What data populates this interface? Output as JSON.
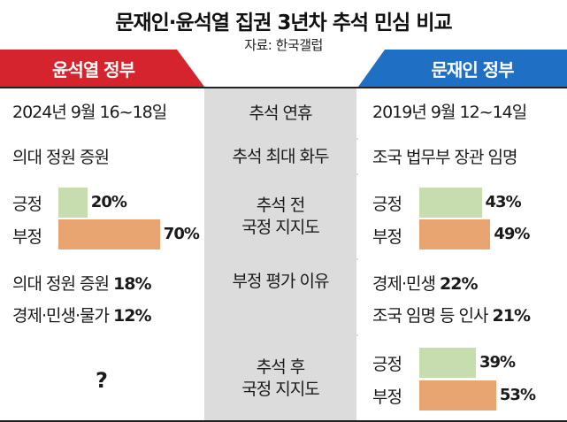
{
  "title": "문재인·윤석열 집권 3년차 추석 민심 비교",
  "source": "자료: 한국갤럽",
  "headers": {
    "left": "윤석열 정부",
    "right": "문재인 정부"
  },
  "rows": {
    "holiday": {
      "mid": "추석 연휴",
      "left": "2024년 9월 16~18일",
      "right": "2019년 9월 12~14일"
    },
    "topic": {
      "mid": "추석 최대 화두",
      "left": "의대 정원 증원",
      "right": "조국 법무부 장관 임명"
    },
    "approval_before": {
      "mid_line1": "추석 전",
      "mid_line2": "국정 지지도"
    },
    "reasons": {
      "mid": "부정 평가 이유"
    },
    "approval_after": {
      "mid_line1": "추석 후",
      "mid_line2": "국정 지지도",
      "left_unknown": "?"
    }
  },
  "labels": {
    "positive": "긍정",
    "negative": "부정"
  },
  "colors": {
    "left_header": "#d6242e",
    "right_header": "#1f6fc4",
    "positive_bar": "#c7ddb0",
    "negative_bar": "#e8a571",
    "middle_column": "#dcdcdc"
  },
  "reasons_left": [
    {
      "text": "의대 정원 증원",
      "value": "18%"
    },
    {
      "text": "경제·민생·물가",
      "value": "12%"
    }
  ],
  "reasons_right": [
    {
      "text": "경제·민생",
      "value": "22%"
    },
    {
      "text": "조국 임명 등 인사",
      "value": "21%"
    }
  ],
  "chart_data": [
    {
      "type": "bar",
      "group": "윤석열 정부 추석 전 국정 지지도",
      "categories": [
        "긍정",
        "부정"
      ],
      "values": [
        20,
        70
      ],
      "value_labels": [
        "20%",
        "70%"
      ]
    },
    {
      "type": "bar",
      "group": "문재인 정부 추석 전 국정 지지도",
      "categories": [
        "긍정",
        "부정"
      ],
      "values": [
        43,
        49
      ],
      "value_labels": [
        "43%",
        "49%"
      ]
    },
    {
      "type": "bar",
      "group": "문재인 정부 추석 후 국정 지지도",
      "categories": [
        "긍정",
        "부정"
      ],
      "values": [
        39,
        53
      ],
      "value_labels": [
        "39%",
        "53%"
      ]
    }
  ]
}
